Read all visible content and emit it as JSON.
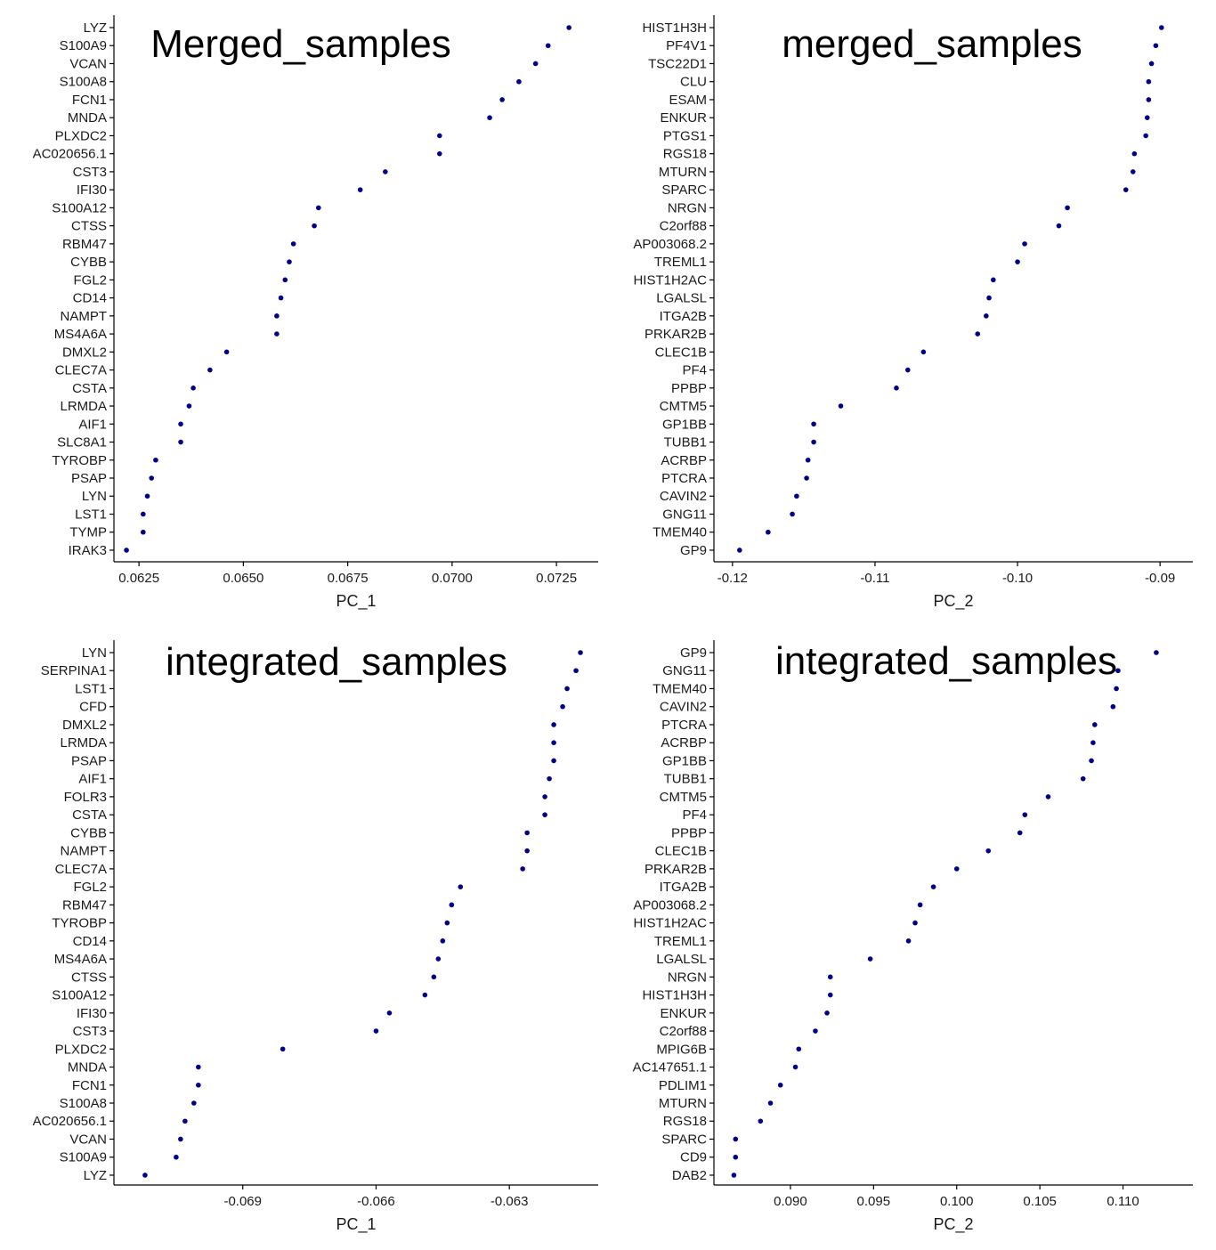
{
  "point_color": "#00008B",
  "chart_data": [
    {
      "type": "scatter",
      "title": "Merged_samples",
      "xlabel": "PC_1",
      "ylabel": "",
      "xlim": [
        0.0619,
        0.0735
      ],
      "xticks": [
        0.0625,
        0.065,
        0.0675,
        0.07,
        0.0725
      ],
      "xtick_labels": [
        "0.0625",
        "0.0650",
        "0.0675",
        "0.0700",
        "0.0725"
      ],
      "genes": [
        "LYZ",
        "S100A9",
        "VCAN",
        "S100A8",
        "FCN1",
        "MNDA",
        "PLXDC2",
        "AC020656.1",
        "CST3",
        "IFI30",
        "S100A12",
        "CTSS",
        "RBM47",
        "CYBB",
        "FGL2",
        "CD14",
        "NAMPT",
        "MS4A6A",
        "DMXL2",
        "CLEC7A",
        "CSTA",
        "LRMDA",
        "AIF1",
        "SLC8A1",
        "TYROBP",
        "PSAP",
        "LYN",
        "LST1",
        "TYMP",
        "IRAK3"
      ],
      "values": [
        0.0728,
        0.0723,
        0.072,
        0.0716,
        0.0712,
        0.0709,
        0.0697,
        0.0697,
        0.0684,
        0.0678,
        0.0668,
        0.0667,
        0.0662,
        0.0661,
        0.066,
        0.0659,
        0.0658,
        0.0658,
        0.0646,
        0.0642,
        0.0638,
        0.0637,
        0.0635,
        0.0635,
        0.0629,
        0.0628,
        0.0627,
        0.0626,
        0.0626,
        0.0622
      ]
    },
    {
      "type": "scatter",
      "title": "merged_samples",
      "xlabel": "PC_2",
      "ylabel": "",
      "xlim": [
        -0.1213,
        -0.0877
      ],
      "xticks": [
        -0.12,
        -0.11,
        -0.1,
        -0.09
      ],
      "xtick_labels": [
        "-0.12",
        "-0.11",
        "-0.10",
        "-0.09"
      ],
      "genes": [
        "HIST1H3H",
        "PF4V1",
        "TSC22D1",
        "CLU",
        "ESAM",
        "ENKUR",
        "PTGS1",
        "RGS18",
        "MTURN",
        "SPARC",
        "NRGN",
        "C2orf88",
        "AP003068.2",
        "TREML1",
        "HIST1H2AC",
        "LGALSL",
        "ITGA2B",
        "PRKAR2B",
        "CLEC1B",
        "PF4",
        "PPBP",
        "CMTM5",
        "GP1BB",
        "TUBB1",
        "ACRBP",
        "PTCRA",
        "CAVIN2",
        "GNG11",
        "TMEM40",
        "GP9"
      ],
      "values": [
        -0.0899,
        -0.0903,
        -0.0906,
        -0.0908,
        -0.0908,
        -0.0909,
        -0.091,
        -0.0918,
        -0.0919,
        -0.0924,
        -0.0965,
        -0.0971,
        -0.0995,
        -0.1,
        -0.1017,
        -0.102,
        -0.1022,
        -0.1028,
        -0.1066,
        -0.1077,
        -0.1085,
        -0.1124,
        -0.1143,
        -0.1143,
        -0.1147,
        -0.1148,
        -0.1155,
        -0.1158,
        -0.1175,
        -0.1195
      ]
    },
    {
      "type": "scatter",
      "title": "integrated_samples",
      "xlabel": "PC_1",
      "ylabel": "",
      "xlim": [
        -0.0719,
        -0.061
      ],
      "xticks": [
        -0.069,
        -0.066,
        -0.063
      ],
      "xtick_labels": [
        "-0.069",
        "-0.066",
        "-0.063"
      ],
      "genes": [
        "LYN",
        "SERPINA1",
        "LST1",
        "CFD",
        "DMXL2",
        "LRMDA",
        "PSAP",
        "AIF1",
        "FOLR3",
        "CSTA",
        "CYBB",
        "NAMPT",
        "CLEC7A",
        "FGL2",
        "RBM47",
        "TYROBP",
        "CD14",
        "MS4A6A",
        "CTSS",
        "S100A12",
        "IFI30",
        "CST3",
        "PLXDC2",
        "MNDA",
        "FCN1",
        "S100A8",
        "AC020656.1",
        "VCAN",
        "S100A9",
        "LYZ"
      ],
      "values": [
        -0.0614,
        -0.0615,
        -0.0617,
        -0.0618,
        -0.062,
        -0.062,
        -0.062,
        -0.0621,
        -0.0622,
        -0.0622,
        -0.0626,
        -0.0626,
        -0.0627,
        -0.0641,
        -0.0643,
        -0.0644,
        -0.0645,
        -0.0646,
        -0.0647,
        -0.0649,
        -0.0657,
        -0.066,
        -0.0681,
        -0.07,
        -0.07,
        -0.0701,
        -0.0703,
        -0.0704,
        -0.0705,
        -0.0712
      ]
    },
    {
      "type": "scatter",
      "title": "integrated_samples",
      "xlabel": "PC_2",
      "ylabel": "",
      "xlim": [
        0.0854,
        0.1142
      ],
      "xticks": [
        0.09,
        0.095,
        0.1,
        0.105,
        0.11
      ],
      "xtick_labels": [
        "0.090",
        "0.095",
        "0.100",
        "0.105",
        "0.110"
      ],
      "genes": [
        "GP9",
        "GNG11",
        "TMEM40",
        "CAVIN2",
        "PTCRA",
        "ACRBP",
        "GP1BB",
        "TUBB1",
        "CMTM5",
        "PF4",
        "PPBP",
        "CLEC1B",
        "PRKAR2B",
        "ITGA2B",
        "AP003068.2",
        "HIST1H2AC",
        "TREML1",
        "LGALSL",
        "NRGN",
        "HIST1H3H",
        "ENKUR",
        "C2orf88",
        "MPIG6B",
        "AC147651.1",
        "PDLIM1",
        "MTURN",
        "RGS18",
        "SPARC",
        "CD9",
        "DAB2"
      ],
      "values": [
        0.112,
        0.1097,
        0.1096,
        0.1094,
        0.1083,
        0.1082,
        0.1081,
        0.1076,
        0.1055,
        0.1041,
        0.1038,
        0.1019,
        0.1,
        0.0986,
        0.0978,
        0.0975,
        0.0971,
        0.0948,
        0.0924,
        0.0924,
        0.0922,
        0.0915,
        0.0905,
        0.0903,
        0.0894,
        0.0888,
        0.0882,
        0.0867,
        0.0867,
        0.0866
      ]
    }
  ]
}
